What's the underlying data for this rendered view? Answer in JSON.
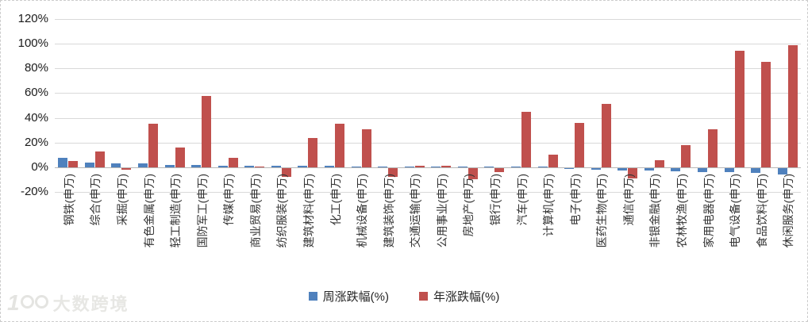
{
  "chart_data": {
    "type": "bar",
    "title": "",
    "categories": [
      "钢铁(申万)",
      "综合(申万)",
      "采掘(申万)",
      "有色金属(申万)",
      "轻工制造(申万)",
      "国防军工(申万)",
      "传媒(申万)",
      "商业贸易(申万)",
      "纺织服装(申万)",
      "建筑材料(申万)",
      "化工(申万)",
      "机械设备(申万)",
      "建筑装饰(申万)",
      "交通运输(申万)",
      "公用事业(申万)",
      "房地产(申万)",
      "银行(申万)",
      "汽车(申万)",
      "计算机(申万)",
      "电子(申万)",
      "医药生物(申万)",
      "通信(申万)",
      "非银金融(申万)",
      "农林牧渔(申万)",
      "家用电器(申万)",
      "电气设备(申万)",
      "食品饮料(申万)",
      "休闲服务(申万)"
    ],
    "series": [
      {
        "name": "周涨跌幅(%)",
        "color": "#4F81BD",
        "values": [
          8,
          4,
          3,
          3,
          2,
          2,
          1.5,
          1,
          1,
          1,
          1,
          0.7,
          0.5,
          0.5,
          0.5,
          0.4,
          0.3,
          0.3,
          0.3,
          -0.5,
          -1,
          -2,
          -2,
          -2.5,
          -3,
          -3,
          -4,
          -5
        ]
      },
      {
        "name": "年涨跌幅(%)",
        "color": "#C0504D",
        "values": [
          5,
          13,
          -1,
          35,
          16,
          58,
          8,
          0.4,
          -7,
          24,
          35,
          31,
          -7,
          1,
          1,
          -9,
          -3,
          45,
          10,
          36,
          51,
          -8,
          6,
          18,
          31,
          94,
          85,
          99
        ]
      }
    ],
    "ylim": [
      -20,
      120
    ],
    "ytick_step": 20,
    "ytick_labels": [
      "120%",
      "100%",
      "80%",
      "60%",
      "40%",
      "20%",
      "0%",
      "-20%"
    ],
    "grid": true,
    "legend_position": "bottom"
  },
  "watermark": {
    "logo_digit": "1",
    "text": "大数跨境"
  }
}
